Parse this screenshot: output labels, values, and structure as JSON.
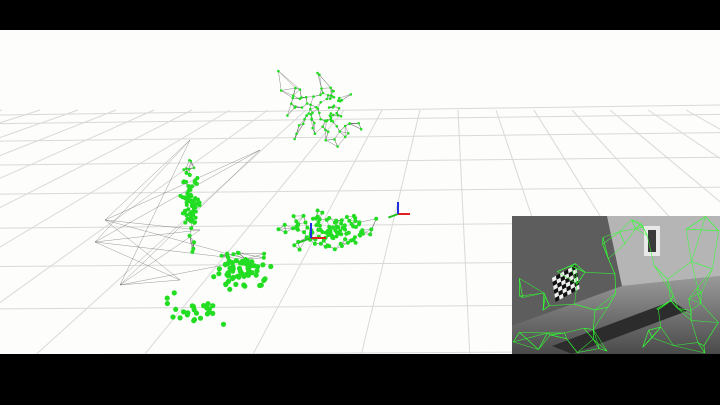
{
  "viewer": {
    "title": "",
    "background_color": "#fdfdfc",
    "letterbox_color": "#000000",
    "grid_color": "#d9d9d9",
    "mesh_color": "#555555",
    "point_color": "#22dd22",
    "axes": {
      "x_color": "#e02020",
      "y_color": "#20c020",
      "z_color": "#2030e0"
    }
  },
  "camera_view": {
    "overlay_color": "#33ff33",
    "contains": [
      "corridor",
      "checkerboard-target",
      "window"
    ]
  }
}
